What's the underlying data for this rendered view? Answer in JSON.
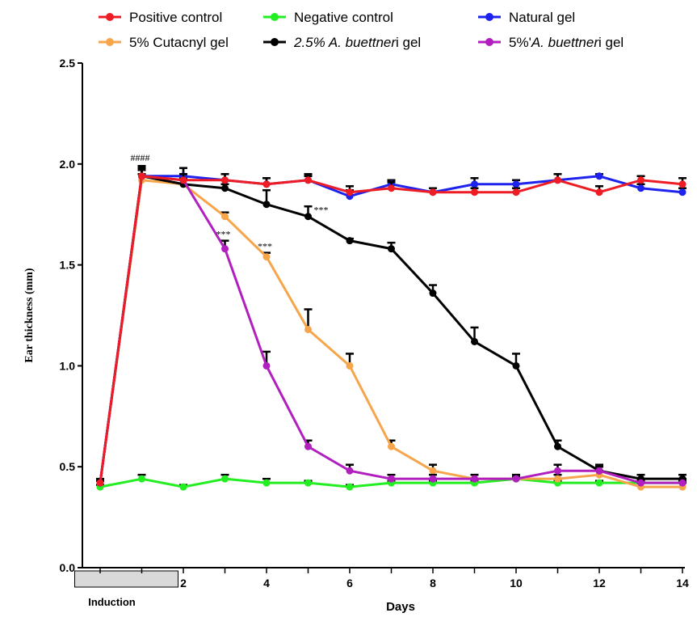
{
  "chart_data": {
    "type": "line",
    "title": "",
    "xlabel": "Days",
    "ylabel": "Ear thickness (mm)",
    "xlim": [
      -1,
      14
    ],
    "ylim": [
      0,
      2.5
    ],
    "x_ticks": [
      2,
      4,
      6,
      8,
      10,
      12,
      14
    ],
    "y_ticks": [
      0.0,
      0.5,
      1.0,
      1.5,
      2.0,
      2.5
    ],
    "y_tick_labels": [
      "0.0",
      "0.5",
      "1.0",
      "1.5",
      "2.0",
      "2.5"
    ],
    "legend_position": "top",
    "induction_label": "Induction",
    "induction_range": [
      -1,
      1
    ],
    "x": [
      0,
      1,
      2,
      3,
      4,
      5,
      6,
      7,
      8,
      9,
      10,
      11,
      12,
      13,
      14
    ],
    "series": [
      {
        "name": "Positive control",
        "color": "#ee1c24",
        "values": [
          0.42,
          1.94,
          1.92,
          1.92,
          1.9,
          1.92,
          1.86,
          1.88,
          1.86,
          1.86,
          1.86,
          1.92,
          1.86,
          1.92,
          1.9
        ],
        "errors": [
          0.02,
          0.05,
          0.03,
          0.03,
          0.03,
          0.03,
          0.03,
          0.03,
          0.02,
          0.02,
          0.02,
          0.03,
          0.03,
          0.02,
          0.03
        ]
      },
      {
        "name": "Negative control",
        "color": "#22ee22",
        "values": [
          0.4,
          0.44,
          0.4,
          0.44,
          0.42,
          0.42,
          0.4,
          0.42,
          0.42,
          0.42,
          0.44,
          0.42,
          0.42,
          0.42,
          0.42
        ],
        "errors": [
          0.01,
          0.02,
          0.01,
          0.02,
          0.02,
          0.01,
          0.01,
          0.01,
          0.01,
          0.01,
          0.01,
          0.01,
          0.01,
          0.01,
          0.01
        ]
      },
      {
        "name": "Natural gel",
        "color": "#1e22ee",
        "values": [
          0.42,
          1.94,
          1.94,
          1.92,
          1.9,
          1.92,
          1.84,
          1.9,
          1.86,
          1.9,
          1.9,
          1.92,
          1.94,
          1.88,
          1.86
        ],
        "errors": [
          0.01,
          0.04,
          0.04,
          0.03,
          0.03,
          0.02,
          0.03,
          0.02,
          0.02,
          0.03,
          0.02,
          0.03,
          0.01,
          0.02,
          0.02
        ]
      },
      {
        "name": "5% Cutacnyl gel",
        "color": "#f7a54a",
        "values": [
          0.42,
          1.92,
          1.9,
          1.74,
          1.54,
          1.18,
          1.0,
          0.6,
          0.48,
          0.44,
          0.44,
          0.44,
          0.46,
          0.4,
          0.4
        ],
        "errors": [
          0.01,
          0.03,
          0.03,
          0.02,
          0.02,
          0.1,
          0.06,
          0.03,
          0.03,
          0.02,
          0.02,
          0.02,
          0.02,
          0.02,
          0.02
        ]
      },
      {
        "name": "2.5% A. buettneri gel",
        "color": "#000000",
        "values": [
          0.42,
          1.94,
          1.9,
          1.88,
          1.8,
          1.74,
          1.62,
          1.58,
          1.36,
          1.12,
          1.0,
          0.6,
          0.48,
          0.44,
          0.44
        ],
        "errors": [
          0.01,
          0.05,
          0.08,
          0.02,
          0.07,
          0.05,
          0.01,
          0.03,
          0.04,
          0.07,
          0.06,
          0.03,
          0.03,
          0.02,
          0.02
        ]
      },
      {
        "name": "5%'A. buettneri gel",
        "color": "#b11fbf",
        "values": [
          0.42,
          1.94,
          1.92,
          1.58,
          1.0,
          0.6,
          0.48,
          0.44,
          0.44,
          0.44,
          0.44,
          0.48,
          0.48,
          0.42,
          0.42
        ],
        "errors": [
          0.01,
          0.03,
          0.03,
          0.04,
          0.07,
          0.03,
          0.03,
          0.02,
          0.02,
          0.02,
          0.02,
          0.03,
          0.02,
          0.02,
          0.02
        ]
      }
    ],
    "annotations": [
      {
        "text": "####",
        "x": 1,
        "y": 2.0
      },
      {
        "text": "***",
        "x": 3,
        "y": 1.62
      },
      {
        "text": "***",
        "x": 4,
        "y": 1.56
      },
      {
        "text": "***",
        "x": 5,
        "y": 1.74
      }
    ]
  }
}
